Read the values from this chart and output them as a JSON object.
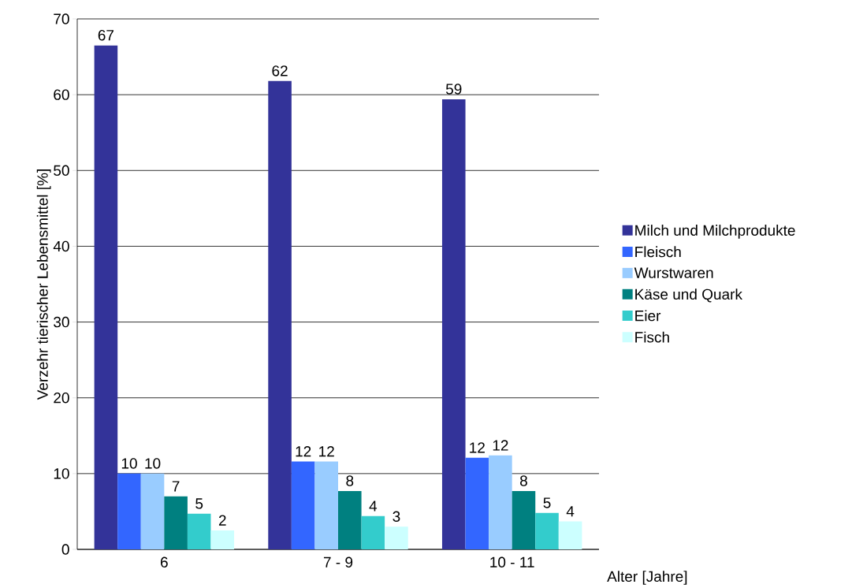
{
  "chart_data": {
    "type": "bar",
    "xlabel": "Alter [Jahre]",
    "ylabel": "Verzehr tierischer Lebensmittel [%]",
    "categories": [
      "6",
      "7 - 9",
      "10 - 11"
    ],
    "series": [
      {
        "name": "Milch und Milchprodukte",
        "color": "#333399",
        "values": [
          66.5,
          61.8,
          59.4
        ],
        "value_labels": [
          "67",
          "62",
          "59"
        ]
      },
      {
        "name": "Fleisch",
        "color": "#3366ff",
        "values": [
          10.0,
          11.6,
          12.1
        ],
        "value_labels": [
          "10",
          "12",
          "12"
        ]
      },
      {
        "name": "Wurstwaren",
        "color": "#99ccff",
        "values": [
          10.0,
          11.6,
          12.4
        ],
        "value_labels": [
          "10",
          "12",
          "12"
        ]
      },
      {
        "name": "Käse und Quark",
        "color": "#008080",
        "values": [
          7.0,
          7.7,
          7.7
        ],
        "value_labels": [
          "7",
          "8",
          "8"
        ]
      },
      {
        "name": "Eier",
        "color": "#33cccc",
        "values": [
          4.7,
          4.4,
          4.8
        ],
        "value_labels": [
          "5",
          "4",
          "5"
        ]
      },
      {
        "name": "Fisch",
        "color": "#ccffff",
        "values": [
          2.5,
          3.0,
          3.7
        ],
        "value_labels": [
          "2",
          "3",
          "4"
        ]
      }
    ],
    "ylim": [
      0,
      70
    ],
    "yticks": [
      0,
      10,
      20,
      30,
      40,
      50,
      60,
      70
    ],
    "grid": "y",
    "legend": "right"
  }
}
